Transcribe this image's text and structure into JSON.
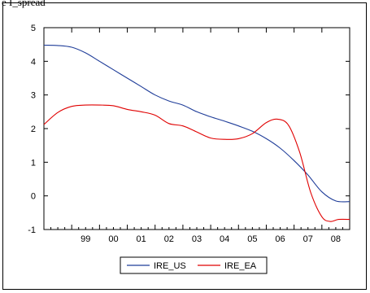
{
  "header": {
    "top_label": "e I_spread"
  },
  "chart_data": {
    "type": "line",
    "title": "",
    "xlabel": "",
    "ylabel": "",
    "xlim": [
      1998.0,
      2009.0
    ],
    "ylim": [
      -1,
      5
    ],
    "yticks": [
      -1,
      0,
      1,
      2,
      3,
      4,
      5
    ],
    "xtick_labels": [
      "99",
      "00",
      "01",
      "02",
      "03",
      "04",
      "05",
      "06",
      "07",
      "08"
    ],
    "xtick_centers": [
      1999.5,
      2000.5,
      2001.5,
      2002.5,
      2003.5,
      2004.5,
      2005.5,
      2006.5,
      2007.5,
      2008.5
    ],
    "grid": false,
    "legend_position": "bottom-center",
    "series": [
      {
        "name": "IRE_US",
        "color": "#1f3d99",
        "x": [
          1998.0,
          1998.5,
          1999.0,
          1999.5,
          2000.0,
          2000.5,
          2001.0,
          2001.5,
          2002.0,
          2002.5,
          2003.0,
          2003.5,
          2004.0,
          2004.5,
          2005.0,
          2005.5,
          2006.0,
          2006.5,
          2007.0,
          2007.5,
          2008.0,
          2008.5,
          2009.0
        ],
        "y": [
          4.48,
          4.47,
          4.42,
          4.25,
          4.0,
          3.75,
          3.5,
          3.25,
          3.0,
          2.82,
          2.7,
          2.5,
          2.35,
          2.22,
          2.08,
          1.92,
          1.7,
          1.42,
          1.05,
          0.62,
          0.12,
          -0.15,
          -0.17
        ]
      },
      {
        "name": "IRE_EA",
        "color": "#e00000",
        "x": [
          1998.0,
          1998.5,
          1999.0,
          1999.5,
          2000.0,
          2000.5,
          2001.0,
          2001.5,
          2002.0,
          2002.5,
          2003.0,
          2003.5,
          2004.0,
          2004.5,
          2005.0,
          2005.5,
          2006.0,
          2006.4,
          2006.8,
          2007.2,
          2007.6,
          2008.0,
          2008.3,
          2008.6,
          2009.0
        ],
        "y": [
          2.12,
          2.48,
          2.66,
          2.7,
          2.7,
          2.68,
          2.57,
          2.5,
          2.4,
          2.15,
          2.08,
          1.9,
          1.72,
          1.68,
          1.7,
          1.85,
          2.18,
          2.28,
          2.1,
          1.3,
          0.1,
          -0.62,
          -0.76,
          -0.7,
          -0.7
        ]
      }
    ]
  }
}
